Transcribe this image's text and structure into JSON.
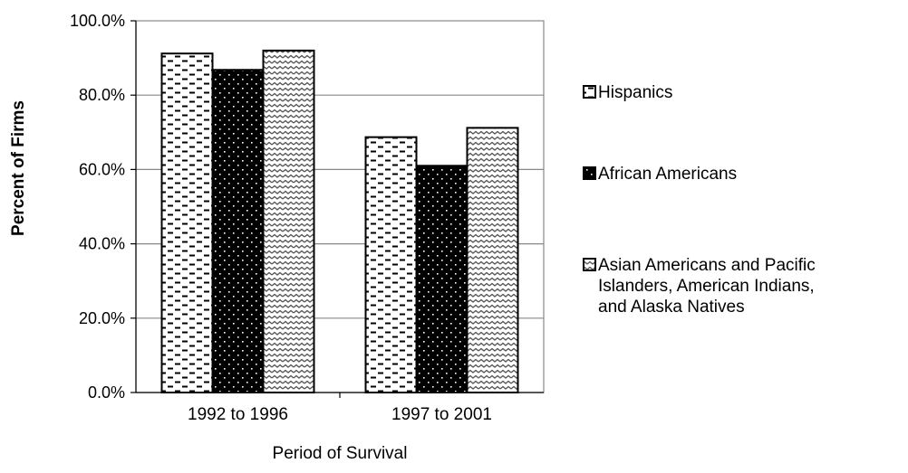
{
  "chart_data": {
    "type": "bar",
    "categories": [
      "1992 to 1996",
      "1997 to 2001"
    ],
    "series": [
      {
        "name": "Hispanics",
        "values": [
          91.2,
          68.7
        ],
        "color": "#ffffff",
        "pattern": "dashes"
      },
      {
        "name": "African Americans",
        "values": [
          86.8,
          61.0
        ],
        "color": "#000000",
        "pattern": "dots"
      },
      {
        "name": "Asian Americans and Pacific Islanders, American Indians, and Alaska Natives",
        "values": [
          92.0,
          71.2
        ],
        "color": "#ffffff",
        "pattern": "waves"
      }
    ],
    "legend_lines": [
      [
        "Hispanics"
      ],
      [
        "African Americans"
      ],
      [
        "Asian Americans and Pacific",
        "Islanders, American Indians,",
        "and Alaska Natives"
      ]
    ],
    "ylim": [
      0,
      100
    ],
    "yticks": [
      "0.0%",
      "20.0%",
      "40.0%",
      "60.0%",
      "80.0%",
      "100.0%"
    ],
    "ytick_values": [
      0,
      20,
      40,
      60,
      80,
      100
    ],
    "xlabel": "Period of Survival",
    "ylabel": "Percent of Firms",
    "grid": true,
    "legend_position": "right"
  }
}
